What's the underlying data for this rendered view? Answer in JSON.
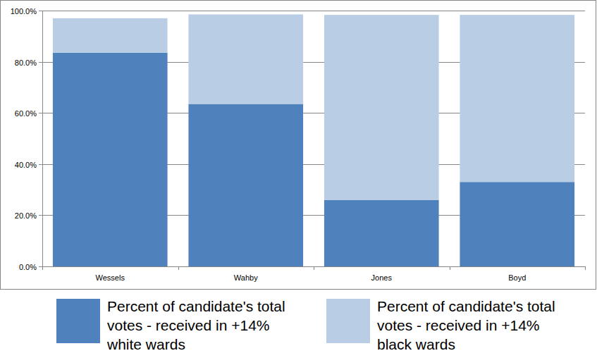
{
  "chart_data": {
    "type": "bar",
    "stacked": true,
    "grid": true,
    "legend": "bottom",
    "categories": [
      "Wessels",
      "Wahby",
      "Jones",
      "Boyd"
    ],
    "series": [
      {
        "name": "Percent of candidate's total votes - received in +14% white wards",
        "color": "#4f81bd",
        "values": [
          83.5,
          63.5,
          26,
          33
        ]
      },
      {
        "name": "Percent of candidate's total votes - received in +14% black wards",
        "color": "#b9cde5",
        "values": [
          13.5,
          35,
          72.3,
          65.3
        ]
      }
    ],
    "ylim": [
      0,
      100
    ],
    "yticks": [
      {
        "value": 0,
        "label": "0.0%"
      },
      {
        "value": 20,
        "label": "20.0%"
      },
      {
        "value": 40,
        "label": "40.0%"
      },
      {
        "value": 60,
        "label": "60.0%"
      },
      {
        "value": 80,
        "label": "80.0%"
      },
      {
        "value": 100,
        "label": "100.0%"
      }
    ]
  }
}
